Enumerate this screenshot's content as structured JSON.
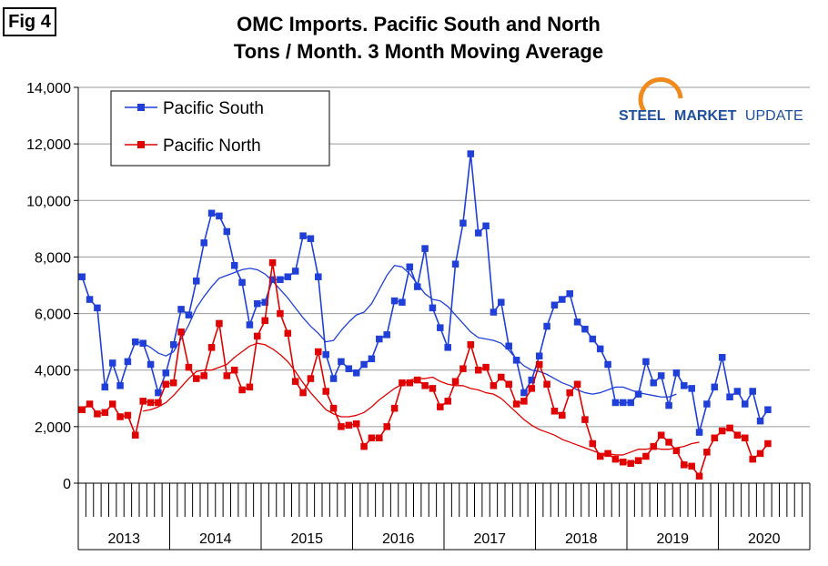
{
  "figure_label": "Fig 4",
  "logo_text": {
    "brand": "STEEL",
    "middle": "MARKET",
    "rest": "UPDATE"
  },
  "colors": {
    "pacific_south": "#1f3fd8",
    "pacific_north": "#e00000",
    "logo_blue": "#1f4e9c",
    "logo_orange": "#f08a1c"
  },
  "chart_data": {
    "type": "line",
    "title": "OMC Imports. Pacific South and North",
    "subtitle": "Tons / Month. 3 Month Moving Average",
    "xlabel": "",
    "ylabel": "",
    "ylim": [
      0,
      14000
    ],
    "yticks": [
      "0",
      "2,000",
      "4,000",
      "6,000",
      "8,000",
      "10,000",
      "12,000",
      "14,000"
    ],
    "ytick_values": [
      0,
      2000,
      4000,
      6000,
      8000,
      10000,
      12000,
      14000
    ],
    "years": [
      "2013",
      "2014",
      "2015",
      "2016",
      "2017",
      "2018",
      "2019",
      "2020"
    ],
    "x_start": "Jan 2013",
    "x_end": "Dec 2020",
    "grid": "horizontal",
    "legend_position": "top-left",
    "series": [
      {
        "name": "Pacific South",
        "color": "#1f3fd8",
        "marker": "square",
        "values": [
          7300,
          6500,
          6200,
          3400,
          4250,
          3450,
          4300,
          5000,
          4950,
          4200,
          3200,
          3900,
          4900,
          6150,
          5950,
          7150,
          8500,
          9550,
          9450,
          8900,
          7700,
          7100,
          5600,
          6350,
          6400,
          7200,
          7200,
          7300,
          7500,
          8750,
          8650,
          7300,
          4550,
          3700,
          4300,
          4050,
          3900,
          4200,
          4400,
          5100,
          5250,
          6450,
          6400,
          7650,
          6950,
          8300,
          6200,
          5500,
          4800,
          7750,
          9200,
          11650,
          8850,
          9100,
          6050,
          6400,
          4850,
          4350,
          3200,
          3650,
          4500,
          5550,
          6300,
          6500,
          6700,
          5700,
          5450,
          5100,
          4750,
          4200,
          2850,
          2850,
          2850,
          3150,
          4300,
          3550,
          3800,
          2750,
          3900,
          3450,
          3350,
          1800,
          2800,
          3400,
          4450,
          3050,
          3250,
          2800,
          3250,
          2200,
          2600
        ]
      },
      {
        "name": "Pacific North",
        "color": "#e00000",
        "marker": "square",
        "values": [
          2600,
          2800,
          2450,
          2500,
          2800,
          2350,
          2400,
          1700,
          2900,
          2850,
          2850,
          3500,
          3550,
          5350,
          4100,
          3700,
          3800,
          4800,
          5650,
          3800,
          4000,
          3300,
          3400,
          5200,
          5750,
          7800,
          6000,
          5300,
          3600,
          3200,
          3700,
          4650,
          3250,
          2650,
          2000,
          2050,
          2100,
          1300,
          1600,
          1600,
          2000,
          2650,
          3550,
          3550,
          3650,
          3450,
          3350,
          2700,
          2900,
          3600,
          4050,
          4900,
          4000,
          4100,
          3450,
          3750,
          3500,
          2800,
          2900,
          3350,
          4200,
          3500,
          2550,
          2400,
          3200,
          3500,
          2250,
          1400,
          950,
          1050,
          850,
          750,
          700,
          800,
          950,
          1300,
          1700,
          1450,
          1150,
          650,
          600,
          250,
          1100,
          1600,
          1850,
          1950,
          1700,
          1600,
          850,
          1050,
          1400
        ]
      },
      {
        "name": "",
        "color": "#1f3fd8",
        "marker": "none",
        "start_month_index": 8,
        "values": [
          4950,
          4800,
          4600,
          4500,
          4650,
          5100,
          5600,
          6200,
          6600,
          6950,
          7250,
          7350,
          7450,
          7550,
          7600,
          7550,
          7400,
          7150,
          6850,
          6550,
          6200,
          5850,
          5550,
          5300,
          5000,
          5050,
          5400,
          5700,
          5950,
          6050,
          6350,
          6850,
          7350,
          7700,
          7650,
          7400,
          7050,
          6700,
          6500,
          6450,
          6250,
          5950,
          5650,
          5350,
          5150,
          5100,
          5050,
          4950,
          4700,
          4400,
          4150,
          4000,
          3950,
          3850,
          3700,
          3550,
          3450,
          3300,
          3200,
          3150,
          3200,
          3300,
          3400,
          3400,
          3300,
          3200,
          3150,
          3100,
          3050,
          3050,
          3150
        ]
      },
      {
        "name": "",
        "color": "#e00000",
        "marker": "none",
        "start_month_index": 8,
        "values": [
          2550,
          2600,
          2700,
          2850,
          3100,
          3400,
          3700,
          3950,
          4000,
          4000,
          4100,
          4200,
          4450,
          4650,
          4850,
          4950,
          4900,
          4750,
          4550,
          4300,
          3950,
          3550,
          3200,
          2900,
          2600,
          2450,
          2350,
          2350,
          2400,
          2500,
          2700,
          2950,
          3150,
          3350,
          3500,
          3650,
          3700,
          3700,
          3750,
          3600,
          3500,
          3450,
          3450,
          3350,
          3300,
          3200,
          3150,
          3000,
          2750,
          2500,
          2250,
          2050,
          1900,
          1800,
          1700,
          1550,
          1450,
          1350,
          1250,
          1150,
          1050,
          1050,
          1000,
          1000,
          1100,
          1200,
          1200,
          1250,
          1200,
          1200,
          1250,
          1300,
          1400,
          1450
        ]
      }
    ]
  }
}
